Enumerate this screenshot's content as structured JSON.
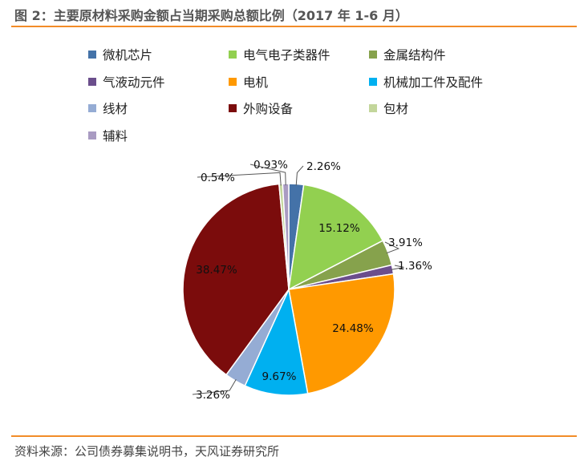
{
  "header": {
    "title": "图 2：主要原材料采购金额占当期采购总额比例（2017 年 1-6 月）"
  },
  "footer": {
    "source": "资料来源：公司债券募集说明书，天风证券研究所"
  },
  "chart_data": {
    "type": "pie",
    "title": "图 2：主要原材料采购金额占当期采购总额比例（2017 年 1-6 月）",
    "legend_position": "top",
    "series": [
      {
        "name": "微机芯片",
        "value": 2.26,
        "label": "2.26%",
        "color": "#4472a8"
      },
      {
        "name": "电气电子类器件",
        "value": 15.12,
        "label": "15.12%",
        "color": "#92d050"
      },
      {
        "name": "金属结构件",
        "value": 3.91,
        "label": "3.91%",
        "color": "#86a24c"
      },
      {
        "name": "气液动元件",
        "value": 1.36,
        "label": "1.36%",
        "color": "#6b4e8c"
      },
      {
        "name": "电机",
        "value": 24.48,
        "label": "24.48%",
        "color": "#ff9900"
      },
      {
        "name": "机械加工件及配件",
        "value": 9.67,
        "label": "9.67%",
        "color": "#00b0f0"
      },
      {
        "name": "线材",
        "value": 3.26,
        "label": "3.26%",
        "color": "#95acd4"
      },
      {
        "name": "外购设备",
        "value": 38.47,
        "label": "38.47%",
        "color": "#7b0c0c"
      },
      {
        "name": "包材",
        "value": 0.54,
        "label": "0.54%",
        "color": "#c3d69b"
      },
      {
        "name": "辅料",
        "value": 0.93,
        "label": "0.93%",
        "color": "#a99bc2"
      }
    ]
  }
}
